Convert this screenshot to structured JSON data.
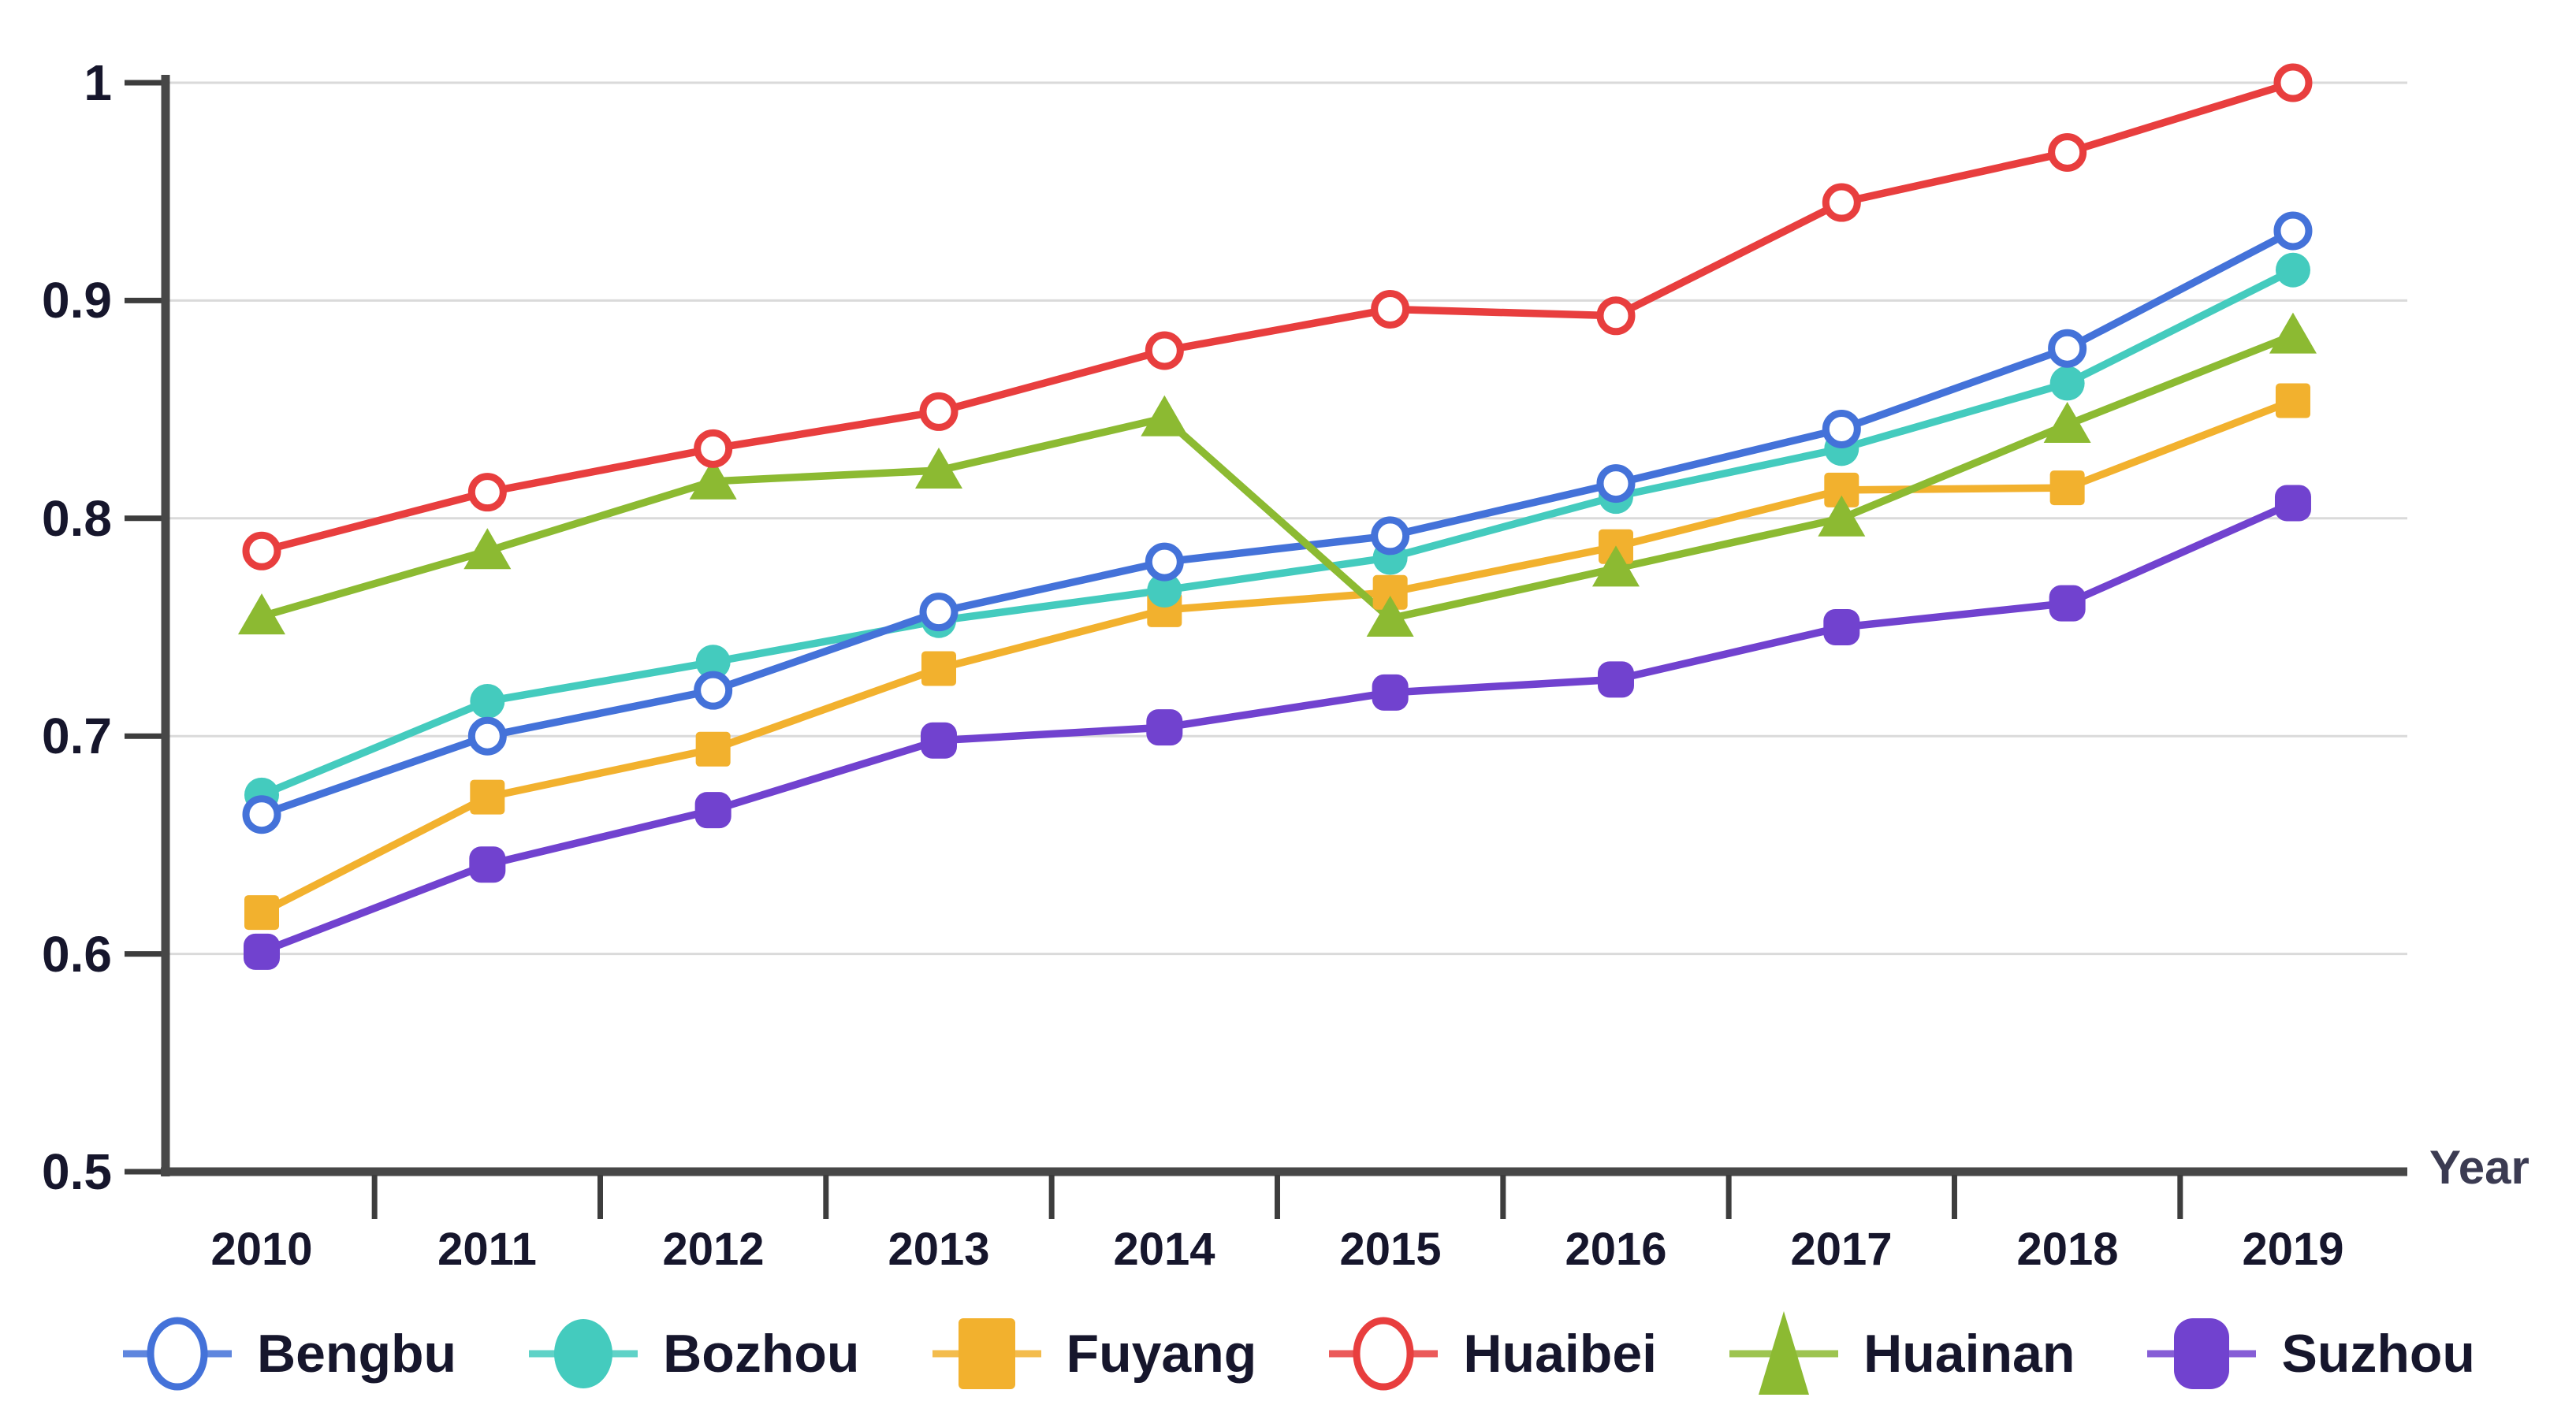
{
  "page": {
    "background": "#ffffff"
  },
  "chart_data": {
    "type": "line",
    "title": "",
    "xlabel": "Year",
    "ylabel": "",
    "categories": [
      "2010",
      "2011",
      "2012",
      "2013",
      "2014",
      "2015",
      "2016",
      "2017",
      "2018",
      "2019"
    ],
    "y_tick_labels": [
      "1",
      "0.9",
      "0.8",
      "0.7",
      "0.6",
      "0.5"
    ],
    "y_tick_values": [
      1.0,
      0.9,
      0.8,
      0.7,
      0.6,
      0.5
    ],
    "ylim": [
      0.5,
      1.0
    ],
    "grid": "horizontal",
    "legend_position": "bottom",
    "series": [
      {
        "name": "Bengbu",
        "color": "#4472d9",
        "marker": "open-circle",
        "values": [
          0.664,
          0.7,
          0.721,
          0.757,
          0.78,
          0.792,
          0.816,
          0.841,
          0.878,
          0.932
        ]
      },
      {
        "name": "Bozhou",
        "color": "#44cbbe",
        "marker": "filled-circle",
        "values": [
          0.673,
          0.716,
          0.734,
          0.753,
          0.767,
          0.782,
          0.81,
          0.832,
          0.862,
          0.914
        ]
      },
      {
        "name": "Fuyang",
        "color": "#f2b12e",
        "marker": "filled-square",
        "values": [
          0.619,
          0.672,
          0.694,
          0.731,
          0.758,
          0.766,
          0.787,
          0.813,
          0.814,
          0.854
        ]
      },
      {
        "name": "Huaibei",
        "color": "#e83e3e",
        "marker": "open-circle",
        "values": [
          0.785,
          0.812,
          0.832,
          0.849,
          0.877,
          0.896,
          0.893,
          0.945,
          0.968,
          1.0
        ]
      },
      {
        "name": "Huainan",
        "color": "#8cba32",
        "marker": "filled-triangle",
        "values": [
          0.755,
          0.785,
          0.817,
          0.822,
          0.846,
          0.754,
          0.777,
          0.8,
          0.843,
          0.884
        ]
      },
      {
        "name": "Suzhou",
        "color": "#7142cf",
        "marker": "rounded-square",
        "values": [
          0.601,
          0.641,
          0.666,
          0.698,
          0.704,
          0.72,
          0.726,
          0.75,
          0.761,
          0.807
        ]
      }
    ],
    "draw_order": [
      "Suzhou",
      "Fuyang",
      "Bozhou",
      "Bengbu",
      "Huainan",
      "Huaibei"
    ]
  },
  "colors": {
    "axis": "#474747",
    "tick": "#3d3d3d",
    "grid": "#dadada",
    "text": "#16162c",
    "year_label": "#3b3b52",
    "marker_fill_open": "#ffffff"
  }
}
